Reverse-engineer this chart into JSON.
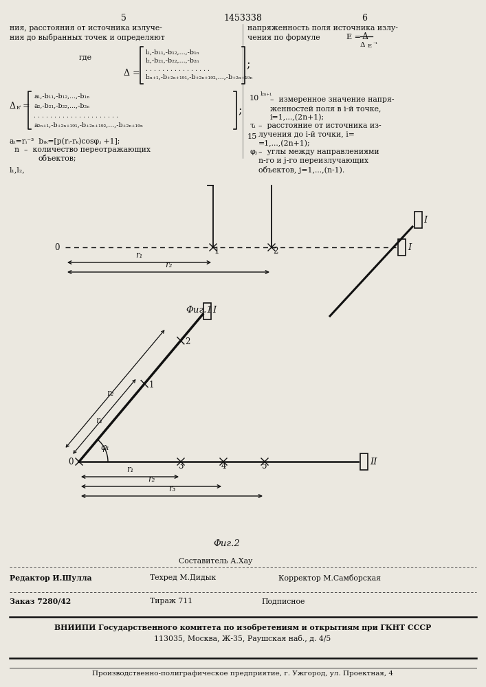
{
  "bg_color": "#ebe8e0",
  "header_5": "5",
  "header_patent": "1453338",
  "header_6": "6",
  "fig1_caption": "Φиг.1",
  "fig2_caption": "Φиг.2",
  "bottom_composer_label": "Составитель А.Хау",
  "bottom_editor": "Редактор И.Шулла",
  "bottom_techred": "Техред М.Дидык",
  "bottom_corrector": "Корректор М.Самборская",
  "bottom_order": "Заказ 7280/42",
  "bottom_tirazh": "Тираж 711",
  "bottom_podpisnoe": "Подписное",
  "bottom_vniipii": "ВНИИПИ Государственного комитета по изобретениям и открытиям при ГКНТ СССР",
  "bottom_address": "113035, Москва, Ж-35, Раушская наб., д. 4/5",
  "bottom_factory": "Производственно-полиграфическое предприятие, г. Ужгород, ул. Проектная, 4"
}
